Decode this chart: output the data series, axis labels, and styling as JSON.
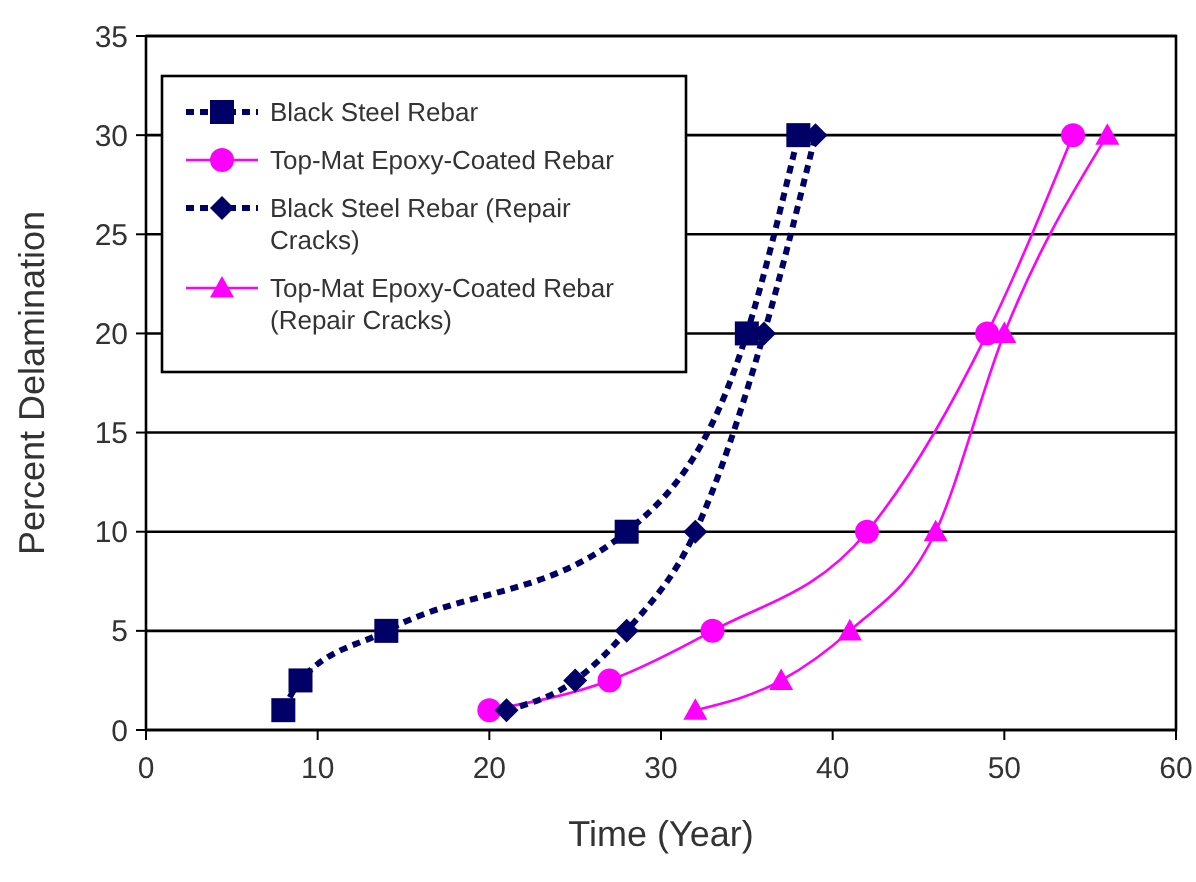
{
  "chart_data": {
    "type": "line",
    "xlabel": "Time (Year)",
    "ylabel": "Percent Delamination",
    "xlim": [
      0,
      60
    ],
    "xticks": [
      0,
      10,
      20,
      30,
      40,
      50,
      60
    ],
    "ylim": [
      0,
      35
    ],
    "yticks": [
      0,
      5,
      10,
      15,
      20,
      25,
      30,
      35
    ],
    "grid": "y",
    "legend": "top left",
    "series": [
      {
        "name": "Black Steel Rebar",
        "color": "#000066",
        "marker": "square",
        "line_style": "dashed",
        "x": [
          8,
          9,
          14,
          28,
          35,
          38
        ],
        "values": [
          1,
          2.5,
          5,
          10,
          20,
          30
        ]
      },
      {
        "name": "Top-Mat Epoxy-Coated Rebar",
        "color": "#ff00ff",
        "marker": "circle",
        "line_style": "solid",
        "x": [
          20,
          27,
          33,
          42,
          49,
          54
        ],
        "values": [
          1,
          2.5,
          5,
          10,
          20,
          30
        ]
      },
      {
        "name": "Black Steel Rebar (Repair Cracks)",
        "color": "#000066",
        "marker": "diamond",
        "line_style": "dashed",
        "x": [
          21,
          25,
          28,
          32,
          36,
          39
        ],
        "values": [
          1,
          2.5,
          5,
          10,
          20,
          30
        ]
      },
      {
        "name": "Top-Mat Epoxy-Coated Rebar (Repair Cracks)",
        "color": "#ff00ff",
        "marker": "triangle",
        "line_style": "solid",
        "x": [
          32,
          37,
          41,
          46,
          50,
          56
        ],
        "values": [
          1,
          2.5,
          5,
          10,
          20,
          30
        ]
      }
    ]
  }
}
